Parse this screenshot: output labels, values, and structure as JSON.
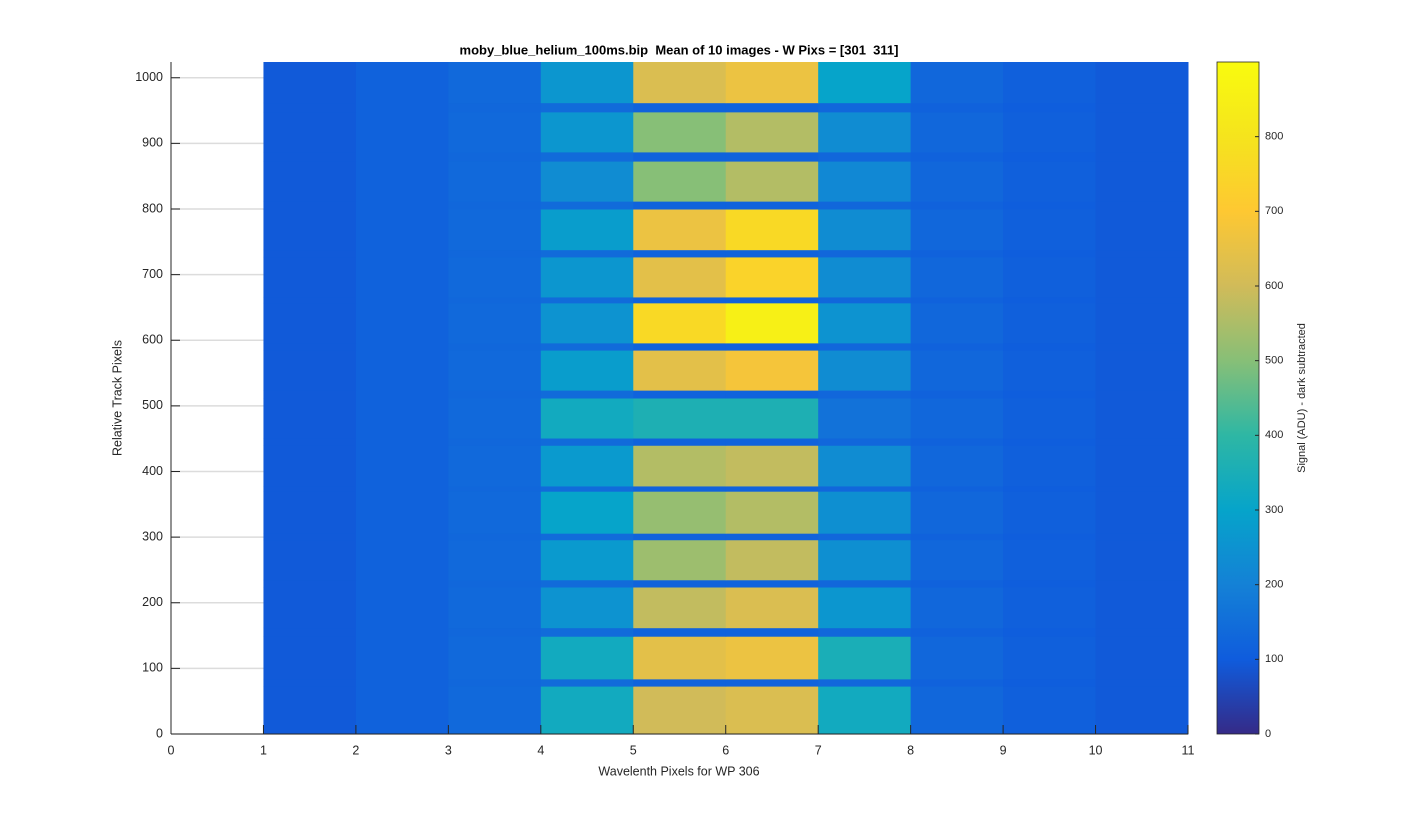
{
  "chart_data": {
    "type": "heatmap",
    "title": "moby_blue_helium_100ms.bip  Mean of 10 images - W Pixs = [301  311]",
    "xlabel": "Wavelenth Pixels for WP 306",
    "ylabel": "Relative Track Pixels",
    "colorbar_label": "Signal (ADU) - dark subtracted",
    "colormap": "parula",
    "grid": true,
    "xlim": [
      0,
      11
    ],
    "xticks": [
      0,
      1,
      2,
      3,
      4,
      5,
      6,
      7,
      8,
      9,
      10,
      11
    ],
    "ylim": [
      0,
      1024
    ],
    "yticks": [
      0,
      100,
      200,
      300,
      400,
      500,
      600,
      700,
      800,
      900,
      1000
    ],
    "clim": [
      0,
      900
    ],
    "cticks": [
      0,
      100,
      200,
      300,
      400,
      500,
      600,
      700,
      800
    ],
    "x_edges": [
      1,
      2,
      3,
      4,
      5,
      6,
      7,
      8,
      9,
      10,
      11
    ],
    "y_edges": [
      0,
      73,
      84,
      149,
      162,
      224,
      235,
      296,
      306,
      370,
      378,
      440,
      451,
      512,
      524,
      585,
      596,
      657,
      666,
      727,
      738,
      800,
      812,
      873,
      887,
      948,
      962,
      1024
    ],
    "values": [
      [
        95,
        115,
        135,
        330,
        600,
        620,
        330,
        130,
        110,
        95
      ],
      [
        95,
        115,
        130,
        140,
        120,
        120,
        130,
        115,
        105,
        95
      ],
      [
        95,
        115,
        135,
        330,
        640,
        660,
        350,
        130,
        110,
        95
      ],
      [
        95,
        115,
        130,
        140,
        120,
        120,
        130,
        115,
        105,
        95
      ],
      [
        95,
        115,
        135,
        250,
        580,
        620,
        260,
        130,
        110,
        95
      ],
      [
        95,
        115,
        130,
        140,
        120,
        120,
        130,
        115,
        105,
        95
      ],
      [
        95,
        115,
        135,
        270,
        530,
        580,
        240,
        130,
        110,
        95
      ],
      [
        95,
        115,
        130,
        140,
        120,
        120,
        130,
        115,
        105,
        95
      ],
      [
        95,
        115,
        135,
        300,
        520,
        560,
        240,
        130,
        110,
        95
      ],
      [
        95,
        115,
        130,
        140,
        120,
        120,
        130,
        115,
        105,
        95
      ],
      [
        95,
        115,
        135,
        270,
        560,
        580,
        230,
        130,
        110,
        95
      ],
      [
        95,
        115,
        130,
        140,
        120,
        120,
        130,
        115,
        105,
        95
      ],
      [
        95,
        115,
        135,
        330,
        360,
        360,
        160,
        130,
        110,
        95
      ],
      [
        95,
        115,
        130,
        140,
        120,
        120,
        130,
        115,
        105,
        95
      ],
      [
        95,
        115,
        135,
        280,
        640,
        680,
        230,
        130,
        110,
        95
      ],
      [
        95,
        115,
        130,
        140,
        120,
        120,
        130,
        115,
        105,
        95
      ],
      [
        95,
        115,
        135,
        250,
        760,
        850,
        250,
        130,
        110,
        95
      ],
      [
        95,
        115,
        130,
        140,
        120,
        120,
        130,
        115,
        105,
        95
      ],
      [
        95,
        115,
        135,
        260,
        640,
        740,
        230,
        130,
        110,
        95
      ],
      [
        95,
        115,
        130,
        140,
        120,
        120,
        130,
        115,
        105,
        95
      ],
      [
        95,
        115,
        135,
        280,
        660,
        760,
        230,
        130,
        110,
        95
      ],
      [
        95,
        115,
        130,
        140,
        120,
        120,
        130,
        115,
        105,
        95
      ],
      [
        95,
        115,
        135,
        230,
        500,
        560,
        220,
        130,
        110,
        95
      ],
      [
        95,
        115,
        130,
        140,
        120,
        120,
        130,
        115,
        105,
        95
      ],
      [
        95,
        115,
        135,
        260,
        500,
        560,
        230,
        130,
        110,
        95
      ],
      [
        95,
        115,
        130,
        140,
        120,
        120,
        130,
        115,
        105,
        95
      ],
      [
        95,
        115,
        135,
        260,
        620,
        660,
        300,
        130,
        110,
        95
      ]
    ]
  }
}
